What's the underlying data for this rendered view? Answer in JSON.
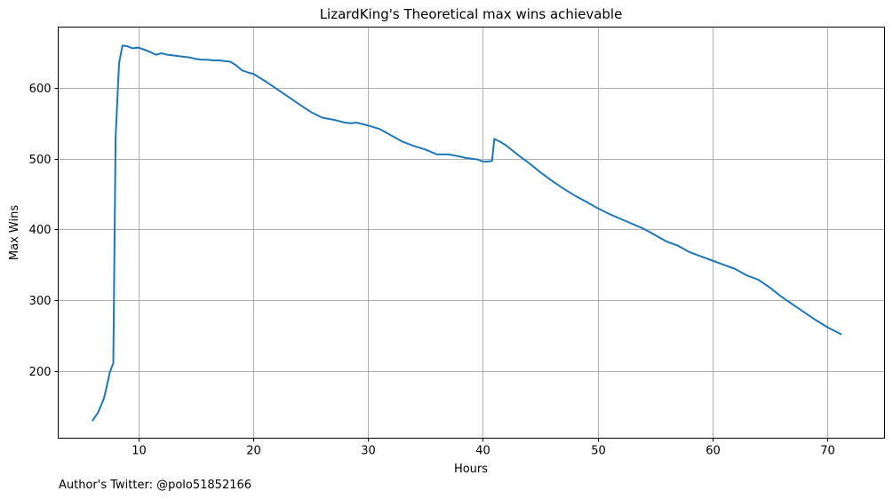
{
  "chart_data": {
    "type": "line",
    "title": "LizardKing's Theoretical max wins achievable",
    "xlabel": "Hours",
    "ylabel": "Max Wins",
    "footer": "Author's Twitter: @polo51852166",
    "xlim": [
      3,
      75
    ],
    "ylim": [
      105,
      686
    ],
    "xticks": [
      10,
      20,
      30,
      40,
      50,
      60,
      70
    ],
    "yticks": [
      200,
      300,
      400,
      500,
      600
    ],
    "grid": true,
    "line_color": "#1f77b4",
    "series": [
      {
        "x": [
          6.0,
          6.5,
          7.0,
          7.5,
          7.8,
          8.0,
          8.3,
          8.6,
          9.0,
          9.5,
          10.0,
          10.5,
          11.0,
          11.5,
          12.0,
          12.5,
          13.0,
          13.5,
          14.0,
          14.5,
          15.0,
          15.5,
          16.0,
          16.5,
          17.0,
          17.5,
          18.0,
          18.5,
          19.0,
          19.5,
          20.0,
          21.0,
          22.0,
          23.0,
          24.0,
          25.0,
          26.0,
          27.0,
          28.0,
          28.5,
          29.0,
          30.0,
          31.0,
          32.0,
          33.0,
          34.0,
          35.0,
          36.0,
          37.0,
          38.0,
          38.5,
          39.0,
          39.5,
          40.0,
          40.5,
          40.8,
          41.0,
          41.5,
          42.0,
          43.0,
          44.0,
          45.0,
          46.0,
          47.0,
          48.0,
          49.0,
          50.0,
          51.0,
          52.0,
          53.0,
          54.0,
          55.0,
          56.0,
          57.0,
          58.0,
          59.0,
          60.0,
          61.0,
          62.0,
          63.0,
          64.0,
          65.0,
          66.0,
          67.0,
          68.0,
          69.0,
          70.0,
          71.2
        ],
        "y": [
          130,
          142,
          162,
          198,
          211,
          530,
          635,
          660,
          659,
          656,
          657,
          654,
          651,
          647,
          649,
          647,
          646,
          645,
          644,
          643,
          641,
          640,
          640,
          639,
          639,
          638,
          637,
          632,
          625,
          622,
          620,
          610,
          599,
          588,
          577,
          566,
          558,
          555,
          551,
          550,
          551,
          547,
          542,
          533,
          524,
          518,
          513,
          506,
          506,
          503,
          501,
          500,
          499,
          496,
          496,
          497,
          528,
          524,
          519,
          506,
          494,
          481,
          469,
          458,
          448,
          439,
          430,
          422,
          415,
          408,
          401,
          392,
          383,
          377,
          368,
          362,
          356,
          350,
          344,
          335,
          329,
          318,
          305,
          294,
          283,
          272,
          262,
          252
        ]
      }
    ]
  }
}
